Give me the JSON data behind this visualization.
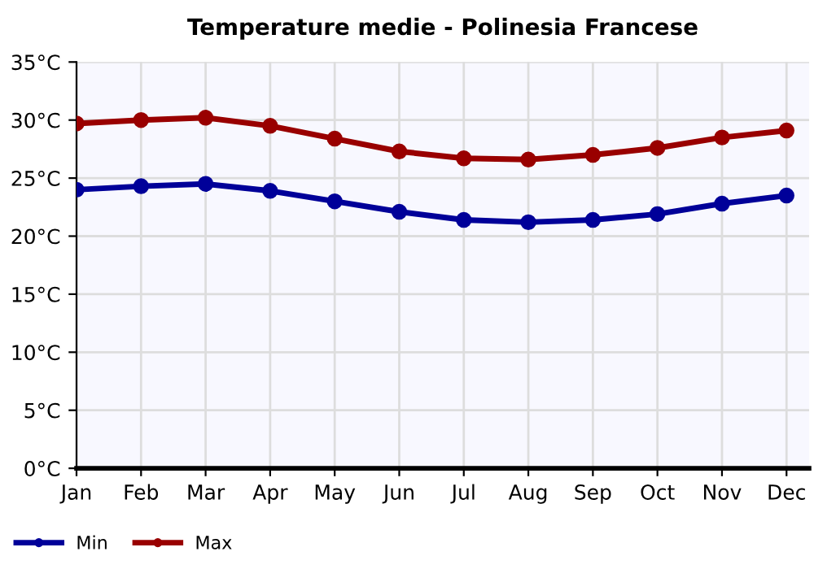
{
  "chart_data": {
    "type": "line",
    "title": "Temperature medie - Polinesia Francese",
    "categories": [
      "Jan",
      "Feb",
      "Mar",
      "Apr",
      "May",
      "Jun",
      "Jul",
      "Aug",
      "Sep",
      "Oct",
      "Nov",
      "Dec"
    ],
    "series": [
      {
        "name": "Min",
        "color": "#000099",
        "values": [
          24.0,
          24.3,
          24.5,
          23.9,
          23.0,
          22.1,
          21.4,
          21.2,
          21.4,
          21.9,
          22.8,
          23.5
        ]
      },
      {
        "name": "Max",
        "color": "#990000",
        "values": [
          29.7,
          30.0,
          30.2,
          29.5,
          28.4,
          27.3,
          26.7,
          26.6,
          27.0,
          27.6,
          28.5,
          29.1
        ]
      }
    ],
    "ylim": [
      0,
      35
    ],
    "yticks": [
      {
        "value": 0,
        "label": "0°C"
      },
      {
        "value": 5,
        "label": "5°C"
      },
      {
        "value": 10,
        "label": "10°C"
      },
      {
        "value": 15,
        "label": "15°C"
      },
      {
        "value": 20,
        "label": "20°C"
      },
      {
        "value": 25,
        "label": "25°C"
      },
      {
        "value": 30,
        "label": "30°C"
      },
      {
        "value": 35,
        "label": "35°C"
      }
    ],
    "grid": true,
    "legend": "bottom left",
    "marker": "circle",
    "line_style": "solid"
  }
}
